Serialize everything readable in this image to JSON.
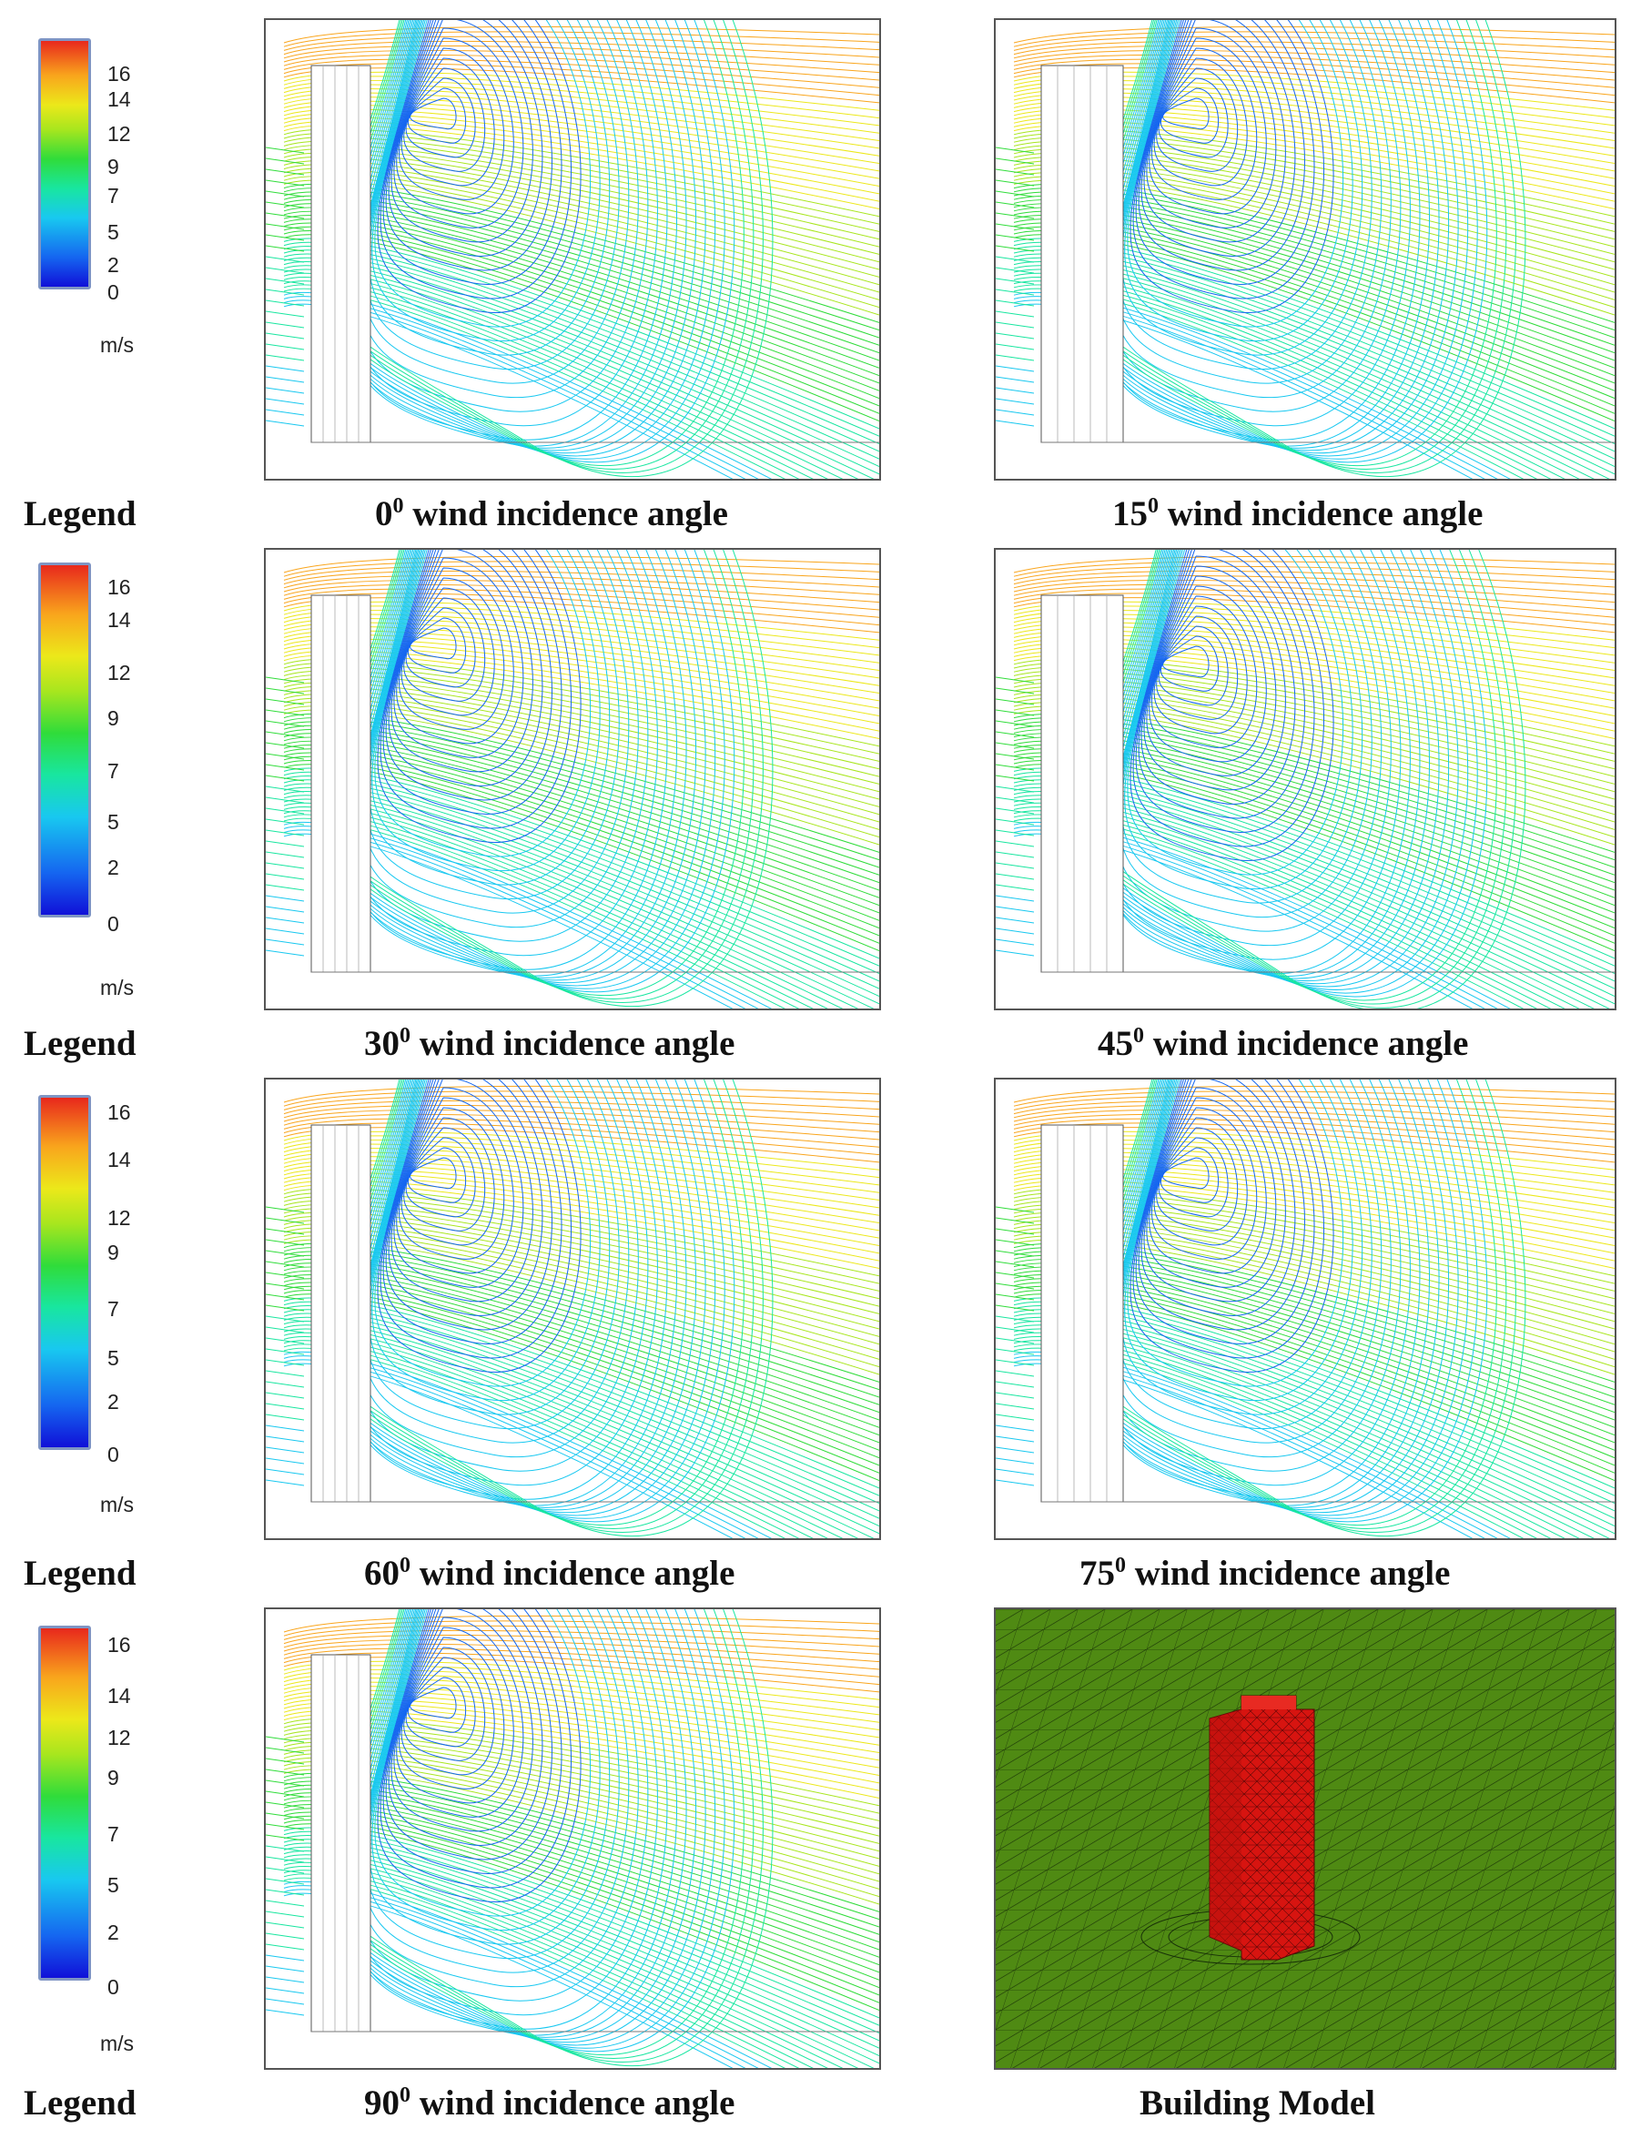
{
  "legend": {
    "label": "Legend",
    "unit": "m/s",
    "ticks": [
      "16",
      "14",
      "12",
      "9",
      "7",
      "5",
      "2",
      "0"
    ]
  },
  "panels": [
    {
      "angle": "0",
      "caption_text": "wind incidence angle",
      "superscript": "0"
    },
    {
      "angle": "15",
      "caption_text": "wind incidence angle",
      "superscript": "0"
    },
    {
      "angle": "30",
      "caption_text": "wind incidence angle",
      "superscript": "0"
    },
    {
      "angle": "45",
      "caption_text": "wind incidence angle",
      "superscript": "0"
    },
    {
      "angle": "60",
      "caption_text": "wind incidence angle",
      "superscript": "0"
    },
    {
      "angle": "75",
      "caption_text": "wind incidence angle",
      "superscript": "0"
    },
    {
      "angle": "90",
      "caption_text": "wind incidence angle",
      "superscript": "0"
    }
  ],
  "model": {
    "caption": "Building Model",
    "ground_color": "#4f8a13",
    "building_color": "#d71410"
  },
  "colors": {
    "scale": [
      "#1010d8",
      "#1566f0",
      "#18c8f0",
      "#18e6a0",
      "#30dc3a",
      "#a8e61e",
      "#ece81a",
      "#f9a51c",
      "#e8281c"
    ]
  }
}
